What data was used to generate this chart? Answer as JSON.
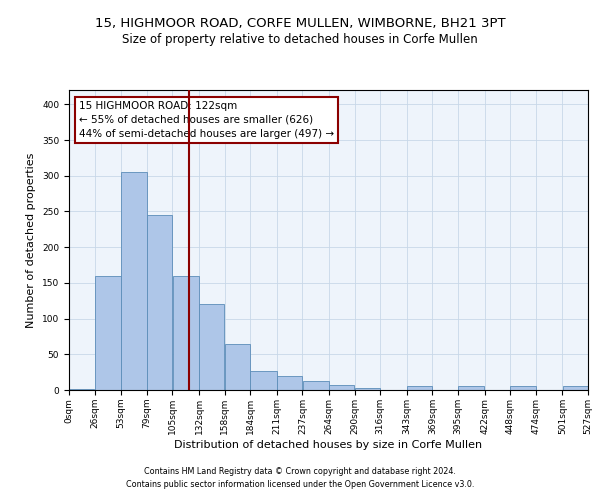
{
  "title_line1": "15, HIGHMOOR ROAD, CORFE MULLEN, WIMBORNE, BH21 3PT",
  "title_line2": "Size of property relative to detached houses in Corfe Mullen",
  "xlabel": "Distribution of detached houses by size in Corfe Mullen",
  "ylabel": "Number of detached properties",
  "footnote1": "Contains HM Land Registry data © Crown copyright and database right 2024.",
  "footnote2": "Contains public sector information licensed under the Open Government Licence v3.0.",
  "property_size": 122,
  "vline_color": "#8B0000",
  "bar_color": "#AEC6E8",
  "bar_edge_color": "#5B8DB8",
  "background_color": "#EEF4FB",
  "annotation_text": "15 HIGHMOOR ROAD: 122sqm\n← 55% of detached houses are smaller (626)\n44% of semi-detached houses are larger (497) →",
  "bin_edges": [
    0,
    26,
    53,
    79,
    105,
    132,
    158,
    184,
    211,
    237,
    264,
    290,
    316,
    343,
    369,
    395,
    422,
    448,
    474,
    501,
    527
  ],
  "bin_counts": [
    2,
    160,
    305,
    245,
    160,
    120,
    65,
    27,
    20,
    12,
    7,
    3,
    0,
    5,
    0,
    5,
    0,
    5,
    0,
    5
  ],
  "ylim": [
    0,
    420
  ],
  "yticks": [
    0,
    50,
    100,
    150,
    200,
    250,
    300,
    350,
    400
  ],
  "grid_color": "#C8D8E8",
  "title_fontsize": 9.5,
  "subtitle_fontsize": 8.5,
  "axis_label_fontsize": 8,
  "tick_label_fontsize": 6.5,
  "footnote_fontsize": 5.8,
  "annotation_fontsize": 7.5
}
